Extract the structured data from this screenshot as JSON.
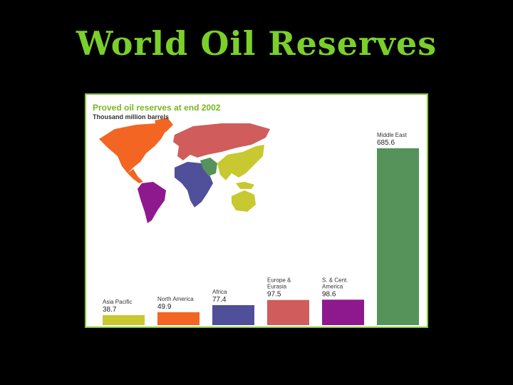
{
  "slide": {
    "title": "World Oil Reserves"
  },
  "colors": {
    "title": "#7ad02a",
    "frame": "#8cc63f",
    "asia_pacific": "#c8c830",
    "north_america": "#f26522",
    "africa": "#4f4f9a",
    "europe_eurasia": "#d05c5c",
    "sc_america": "#8e198e",
    "middle_east": "#55935a"
  },
  "chart_data": {
    "type": "bar",
    "title": "Proved oil reserves at end 2002",
    "subtitle": "Thousand million barrels",
    "categories": [
      [
        "Asia Pacific"
      ],
      [
        "North America"
      ],
      [
        "Africa"
      ],
      [
        "Europe &",
        "Eurasia"
      ],
      [
        "S. & Cent.",
        "America"
      ],
      [
        "Middle East"
      ]
    ],
    "values": [
      38.7,
      49.9,
      77.4,
      97.5,
      98.6,
      685.6
    ],
    "value_labels": [
      "38.7",
      "49.9",
      "77.4",
      "97.5",
      "98.6",
      "685.6"
    ],
    "ylim": [
      0,
      685.6
    ],
    "grid": false,
    "map": {
      "inset": "world map colored by region"
    }
  }
}
